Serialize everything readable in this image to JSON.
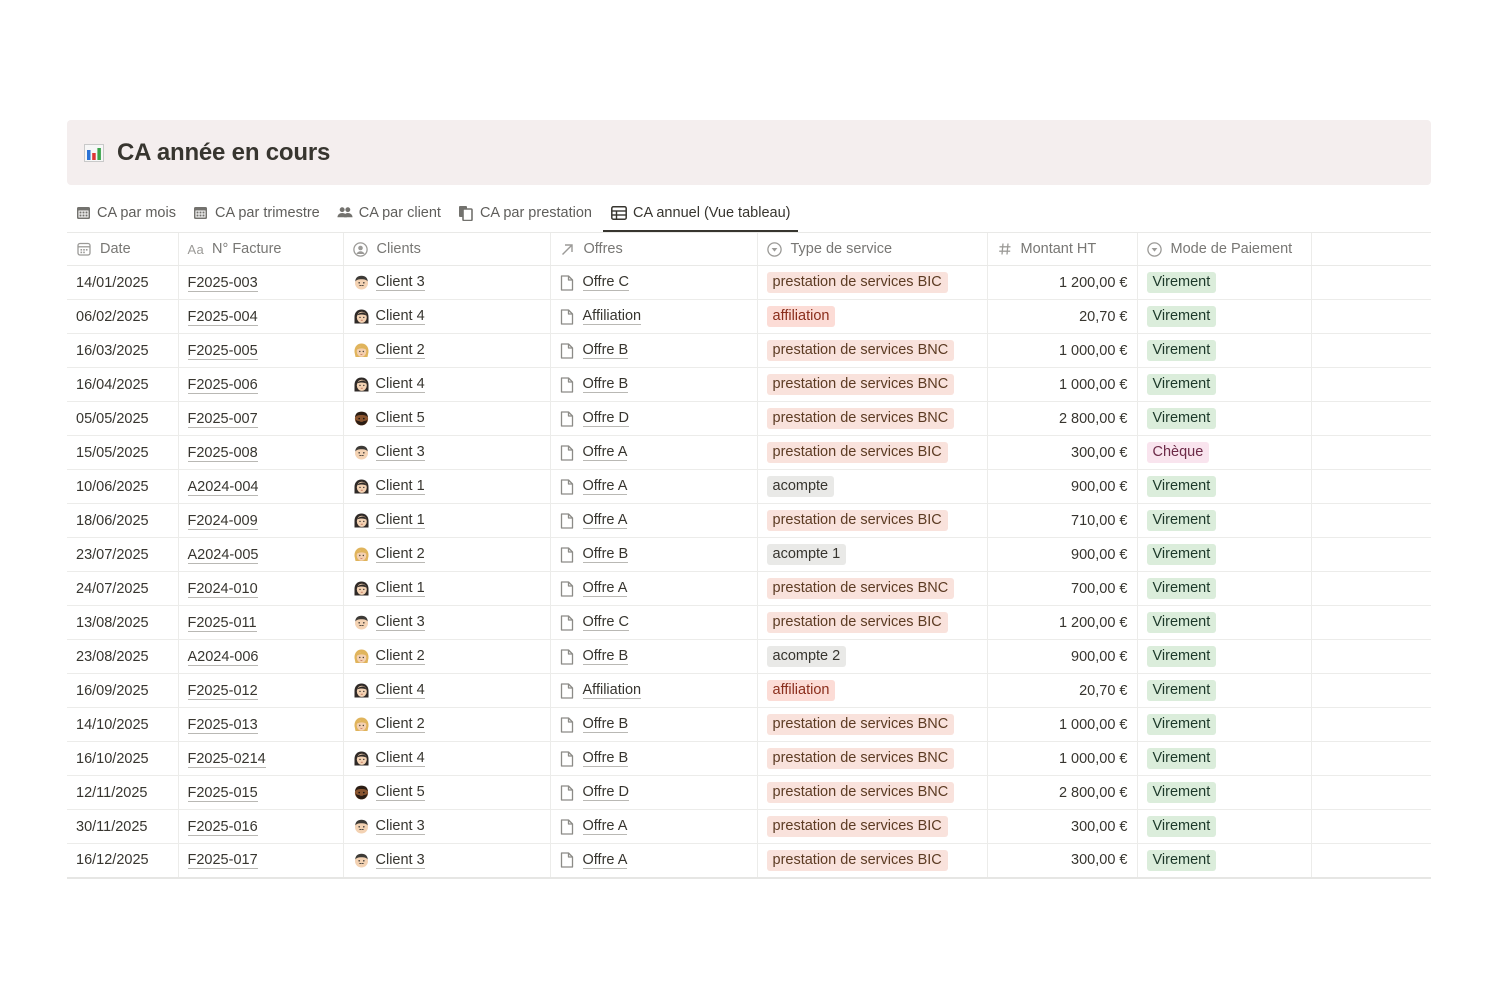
{
  "header": {
    "title": "CA année en cours",
    "icon": "bar-chart-icon"
  },
  "tabs": [
    {
      "label": "CA par mois",
      "icon": "calendar-icon",
      "active": false
    },
    {
      "label": "CA par trimestre",
      "icon": "calendar-icon",
      "active": false
    },
    {
      "label": "CA par client",
      "icon": "people-icon",
      "active": false
    },
    {
      "label": "CA par prestation",
      "icon": "documents-icon",
      "active": false
    },
    {
      "label": "CA annuel (Vue tableau)",
      "icon": "table-icon",
      "active": true
    }
  ],
  "columns": {
    "date": "Date",
    "invoice_prefix": "Aa",
    "invoice": "N° Facture",
    "clients": "Clients",
    "offers": "Offres",
    "service": "Type de service",
    "amount": "Montant HT",
    "payment": "Mode de Paiement"
  },
  "colors": {
    "tag_bic": "#f9e2dc",
    "tag_affiliation": "#fcdcd6",
    "tag_acompte": "#e9e9e7",
    "tag_virement": "#dbeddb",
    "tag_cheque": "#f9e4ee"
  },
  "rows": [
    {
      "date": "14/01/2025",
      "invoice": "F2025-003",
      "client": "Client 3",
      "avatar": "man-mustache",
      "offer": "Offre C",
      "service": "prestation de services BIC",
      "amount": "1 200,00 €",
      "payment": "Virement"
    },
    {
      "date": "06/02/2025",
      "invoice": "F2025-004",
      "client": "Client 4",
      "avatar": "woman-dark-hair",
      "offer": "Affiliation",
      "service": "affiliation",
      "amount": "20,70 €",
      "payment": "Virement"
    },
    {
      "date": "16/03/2025",
      "invoice": "F2025-005",
      "client": "Client 2",
      "avatar": "woman-blonde",
      "offer": "Offre B",
      "service": "prestation de services BNC",
      "amount": "1 000,00 €",
      "payment": "Virement"
    },
    {
      "date": "16/04/2025",
      "invoice": "F2025-006",
      "client": "Client 4",
      "avatar": "woman-dark-hair",
      "offer": "Offre B",
      "service": "prestation de services BNC",
      "amount": "1 000,00 €",
      "payment": "Virement"
    },
    {
      "date": "05/05/2025",
      "invoice": "F2025-007",
      "client": "Client 5",
      "avatar": "man-beard-dark",
      "offer": "Offre D",
      "service": "prestation de services BNC",
      "amount": "2 800,00 €",
      "payment": "Virement"
    },
    {
      "date": "15/05/2025",
      "invoice": "F2025-008",
      "client": "Client 3",
      "avatar": "man-mustache",
      "offer": "Offre A",
      "service": "prestation de services BIC",
      "amount": "300,00 €",
      "payment": "Chèque"
    },
    {
      "date": "10/06/2025",
      "invoice": "A2024-004",
      "client": "Client 1",
      "avatar": "woman-dark-hair",
      "offer": "Offre A",
      "service": "acompte",
      "amount": "900,00 €",
      "payment": "Virement"
    },
    {
      "date": "18/06/2025",
      "invoice": "F2024-009",
      "client": "Client 1",
      "avatar": "woman-dark-hair",
      "offer": "Offre A",
      "service": "prestation de services BIC",
      "amount": "710,00 €",
      "payment": "Virement"
    },
    {
      "date": "23/07/2025",
      "invoice": "A2024-005",
      "client": "Client 2",
      "avatar": "woman-blonde",
      "offer": "Offre B",
      "service": "acompte 1",
      "amount": "900,00 €",
      "payment": "Virement"
    },
    {
      "date": "24/07/2025",
      "invoice": "F2024-010",
      "client": "Client 1",
      "avatar": "woman-dark-hair",
      "offer": "Offre A",
      "service": "prestation de services BNC",
      "amount": "700,00 €",
      "payment": "Virement"
    },
    {
      "date": "13/08/2025",
      "invoice": "F2025-011",
      "client": "Client 3",
      "avatar": "man-mustache",
      "offer": "Offre C",
      "service": "prestation de services BIC",
      "amount": "1 200,00 €",
      "payment": "Virement"
    },
    {
      "date": "23/08/2025",
      "invoice": "A2024-006",
      "client": "Client 2",
      "avatar": "woman-blonde",
      "offer": "Offre B",
      "service": "acompte 2",
      "amount": "900,00 €",
      "payment": "Virement"
    },
    {
      "date": "16/09/2025",
      "invoice": "F2025-012",
      "client": "Client 4",
      "avatar": "woman-dark-hair",
      "offer": "Affiliation",
      "service": "affiliation",
      "amount": "20,70 €",
      "payment": "Virement"
    },
    {
      "date": "14/10/2025",
      "invoice": "F2025-013",
      "client": "Client 2",
      "avatar": "woman-blonde",
      "offer": "Offre B",
      "service": "prestation de services BNC",
      "amount": "1 000,00 €",
      "payment": "Virement"
    },
    {
      "date": "16/10/2025",
      "invoice": "F2025-0214",
      "client": "Client 4",
      "avatar": "woman-dark-hair",
      "offer": "Offre B",
      "service": "prestation de services BNC",
      "amount": "1 000,00 €",
      "payment": "Virement"
    },
    {
      "date": "12/11/2025",
      "invoice": "F2025-015",
      "client": "Client 5",
      "avatar": "man-beard-dark",
      "offer": "Offre D",
      "service": "prestation de services BNC",
      "amount": "2 800,00 €",
      "payment": "Virement"
    },
    {
      "date": "30/11/2025",
      "invoice": "F2025-016",
      "client": "Client 3",
      "avatar": "man-mustache",
      "offer": "Offre A",
      "service": "prestation de services BIC",
      "amount": "300,00 €",
      "payment": "Virement"
    },
    {
      "date": "16/12/2025",
      "invoice": "F2025-017",
      "client": "Client 3",
      "avatar": "man-mustache",
      "offer": "Offre A",
      "service": "prestation de services BIC",
      "amount": "300,00 €",
      "payment": "Virement"
    }
  ]
}
